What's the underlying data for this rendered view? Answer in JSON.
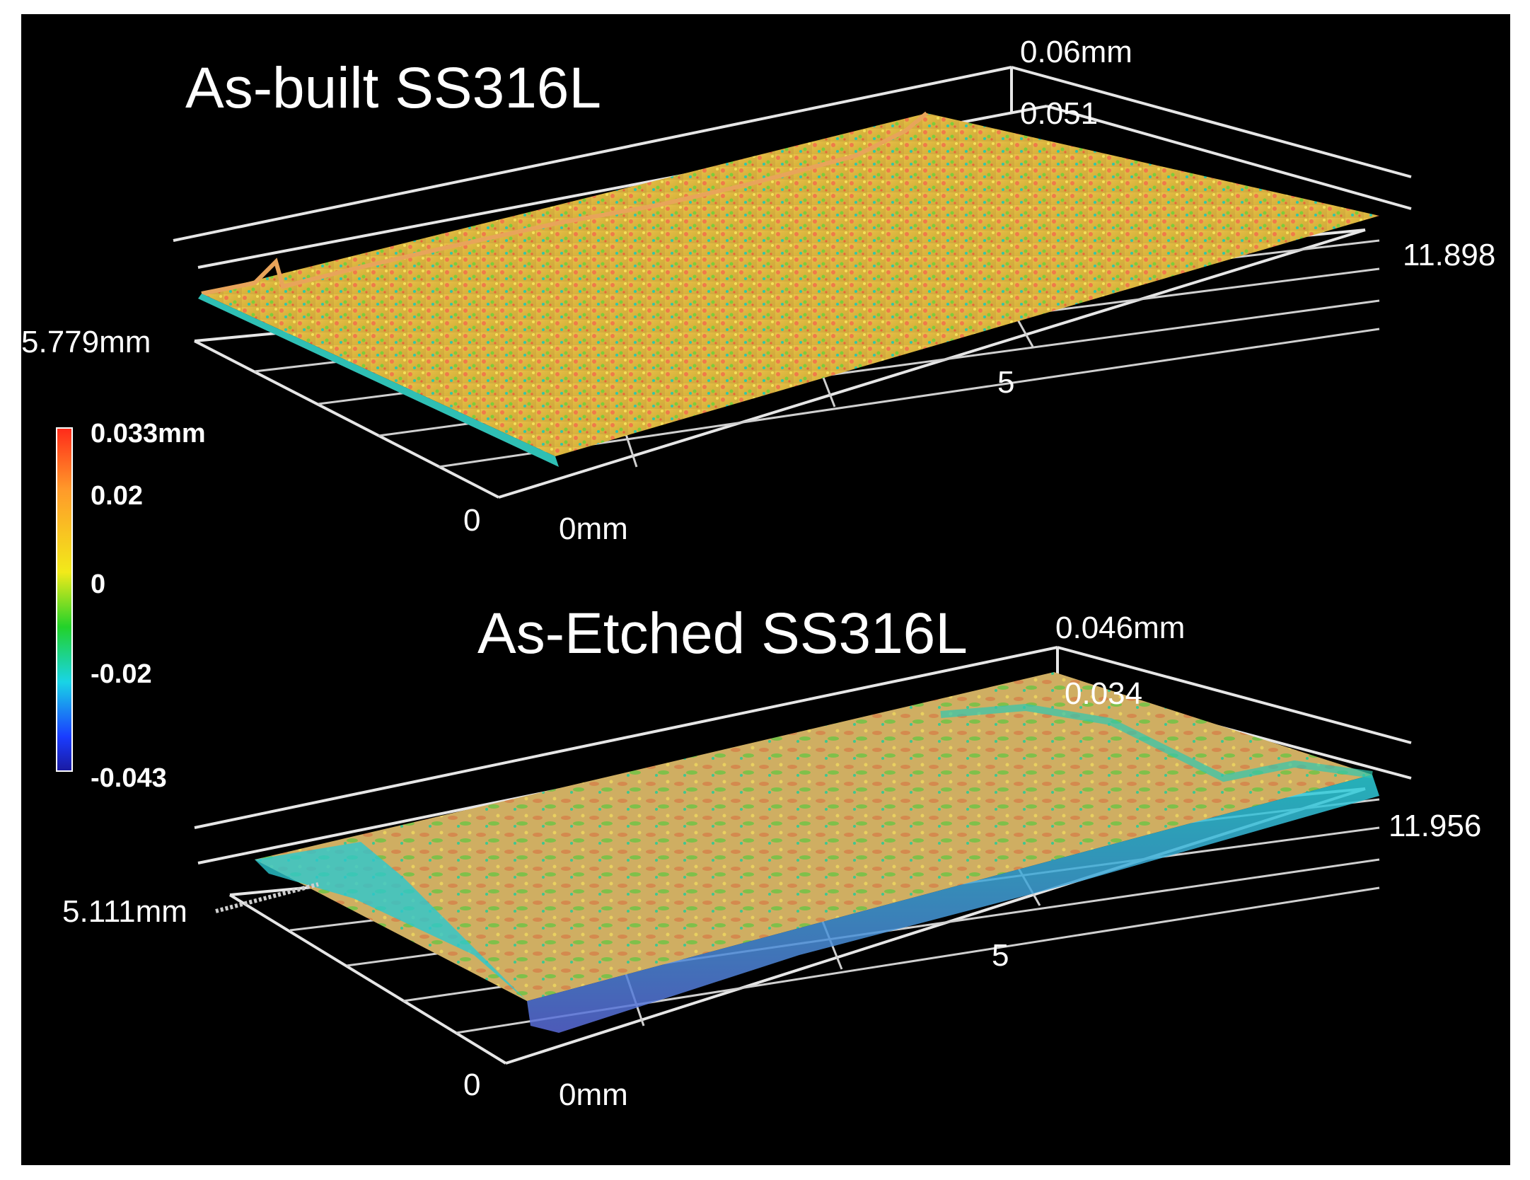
{
  "figure": {
    "top_panel": {
      "title": "As-built SS316L",
      "z_top_label": "0.06mm",
      "z_second_label": "0.051",
      "y_max_label": "5.779mm",
      "x_max_label": "11.898",
      "x_mid_label": "5",
      "y_zero_label": "0",
      "x_zero_label": "0mm"
    },
    "bottom_panel": {
      "title": "As-Etched SS316L",
      "z_top_label": "0.046mm",
      "z_second_label": "0.034",
      "y_max_label": "5.111mm",
      "x_max_label": "11.956",
      "x_mid_label": "5",
      "y_zero_label": "0",
      "x_zero_label": "0mm"
    },
    "colorbar": {
      "ticks": [
        "0.033mm",
        "0.02",
        "0",
        "-0.02",
        "-0.043"
      ],
      "colors": [
        "#ff2a1a",
        "#ff9a2a",
        "#f2ea1a",
        "#22d22a",
        "#19d4e6",
        "#1a3cff",
        "#1a1aa0"
      ]
    }
  }
}
